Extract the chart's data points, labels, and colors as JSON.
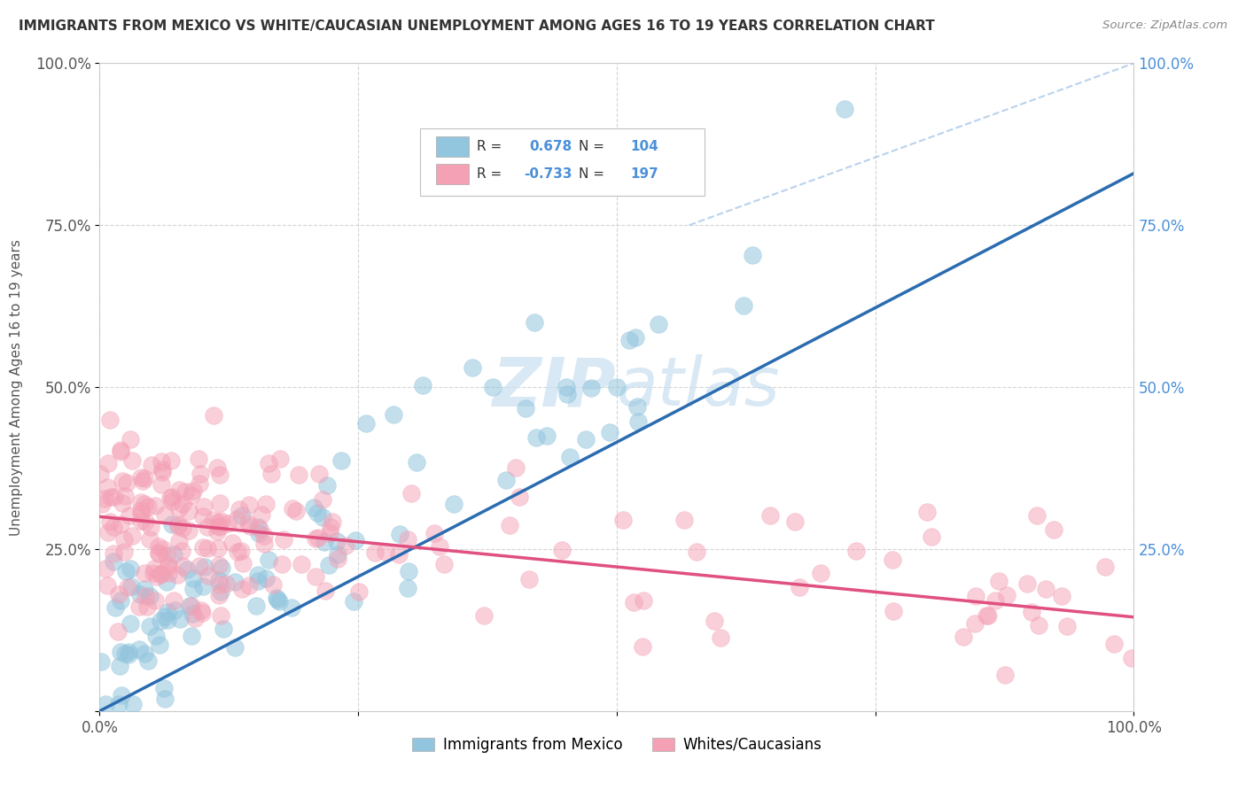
{
  "title": "IMMIGRANTS FROM MEXICO VS WHITE/CAUCASIAN UNEMPLOYMENT AMONG AGES 16 TO 19 YEARS CORRELATION CHART",
  "source": "Source: ZipAtlas.com",
  "ylabel": "Unemployment Among Ages 16 to 19 years",
  "xlim": [
    0,
    1.0
  ],
  "ylim": [
    0,
    1.0
  ],
  "x_tick_labels": [
    "0.0%",
    "",
    "",
    "",
    "100.0%"
  ],
  "y_tick_labels_left": [
    "",
    "25.0%",
    "50.0%",
    "75.0%",
    "100.0%"
  ],
  "y_tick_labels_right": [
    "",
    "25.0%",
    "50.0%",
    "75.0%",
    "100.0%"
  ],
  "blue_color": "#92c5de",
  "pink_color": "#f4a0b5",
  "blue_line_color": "#2b6cb0",
  "pink_line_color": "#e05080",
  "dash_line_color": "#a8c8e8",
  "tick_color": "#4a90d9",
  "background_color": "#ffffff",
  "grid_color": "#d0d0d0",
  "blue_line_x0": 0.0,
  "blue_line_y0": 0.0,
  "blue_line_x1": 1.0,
  "blue_line_y1": 0.83,
  "pink_line_x0": 0.0,
  "pink_line_y0": 0.3,
  "pink_line_x1": 1.0,
  "pink_line_y1": 0.145,
  "dash_line_x0": 0.57,
  "dash_line_y0": 0.75,
  "dash_line_x1": 1.0,
  "dash_line_y1": 1.0,
  "watermark_text": "ZIPAtlas",
  "watermark_color": "#c8dff0",
  "legend_blue_r": "0.678",
  "legend_blue_n": "104",
  "legend_pink_r": "-0.733",
  "legend_pink_n": "197",
  "seed": 123
}
